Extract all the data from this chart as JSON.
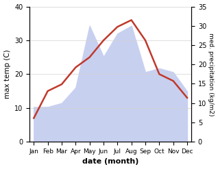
{
  "months": [
    "Jan",
    "Feb",
    "Mar",
    "Apr",
    "May",
    "Jun",
    "Jul",
    "Aug",
    "Sep",
    "Oct",
    "Nov",
    "Dec"
  ],
  "temp": [
    7,
    15,
    17,
    22,
    25,
    30,
    34,
    36,
    30,
    20,
    18,
    13
  ],
  "precip": [
    9,
    9,
    10,
    14,
    30,
    22,
    28,
    30,
    18,
    19,
    18,
    13
  ],
  "temp_color": "#c0392b",
  "precip_color_fill": "#c8d0f0",
  "temp_ylim": [
    0,
    40
  ],
  "precip_ylim": [
    0,
    35
  ],
  "xlabel": "date (month)",
  "ylabel_left": "max temp (C)",
  "ylabel_right": "med. precipitation (kg/m2)",
  "bg_color": "#ffffff",
  "grid_color": "#d0d0d0"
}
